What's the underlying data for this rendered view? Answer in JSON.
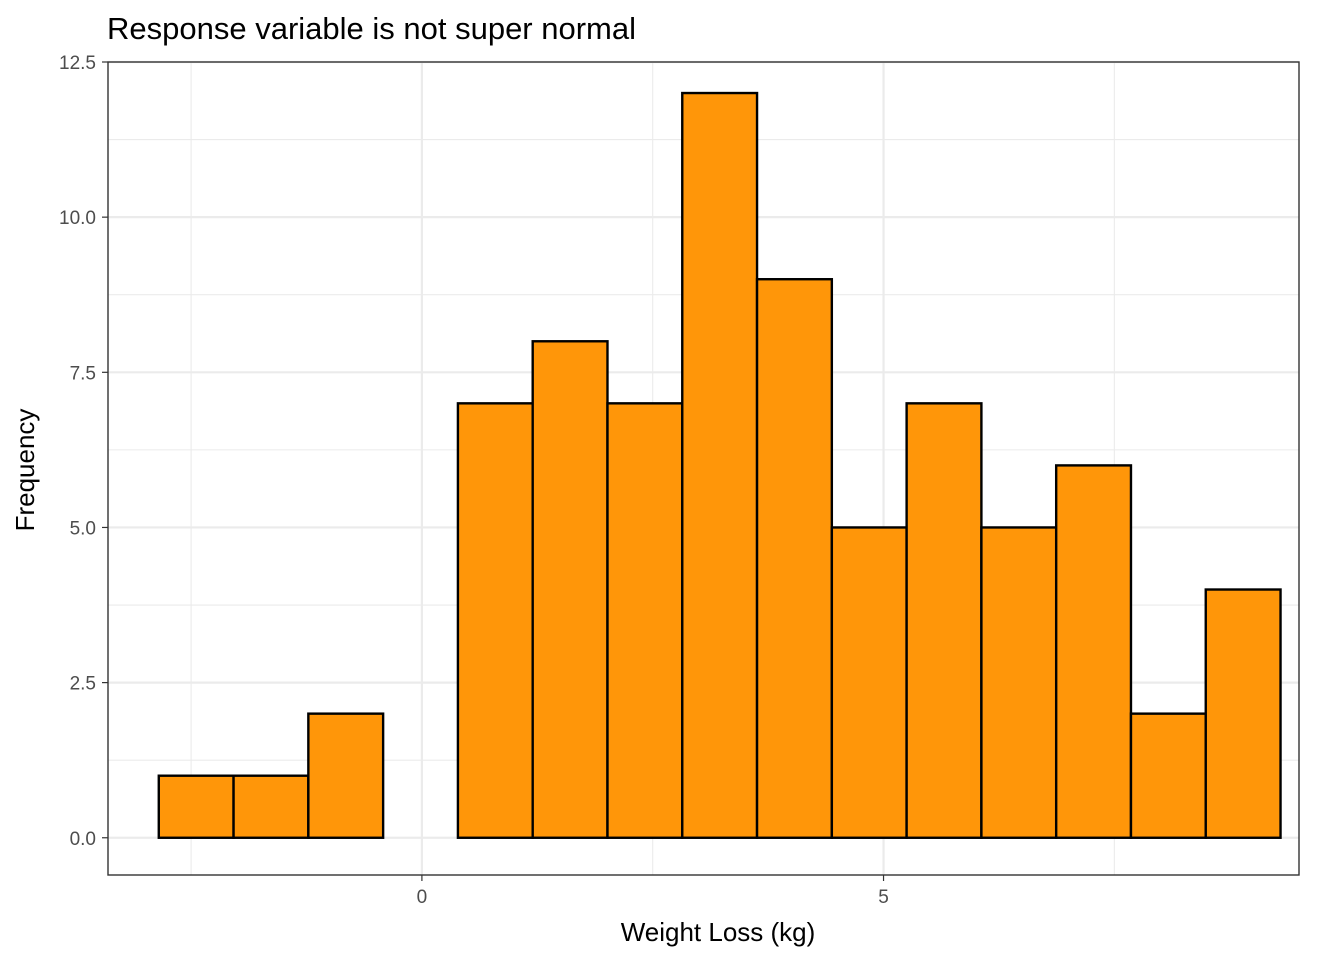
{
  "chart_data": {
    "type": "bar",
    "title": "Response variable is not super normal",
    "xlabel": "Weight Loss (kg)",
    "ylabel": "Frequency",
    "xlim": [
      -3.4,
      9.5
    ],
    "ylim": [
      -0.6,
      12.5
    ],
    "x_ticks": [
      {
        "value": 0,
        "label": "0"
      },
      {
        "value": 5,
        "label": "5"
      }
    ],
    "x_minor_ticks": [
      -2.5,
      2.5,
      7.5
    ],
    "y_ticks": [
      {
        "value": 0,
        "label": "0.0"
      },
      {
        "value": 2.5,
        "label": "2.5"
      },
      {
        "value": 5,
        "label": "5.0"
      },
      {
        "value": 7.5,
        "label": "7.5"
      },
      {
        "value": 10,
        "label": "10.0"
      },
      {
        "value": 12.5,
        "label": "12.5"
      }
    ],
    "y_minor_ticks": [
      1.25,
      3.75,
      6.25,
      8.75,
      11.25
    ],
    "bins": [
      {
        "x0": -2.85,
        "x1": -2.04,
        "count": 1
      },
      {
        "x0": -2.04,
        "x1": -1.23,
        "count": 1
      },
      {
        "x0": -1.23,
        "x1": -0.42,
        "count": 2
      },
      {
        "x0": -0.42,
        "x1": 0.39,
        "count": 0
      },
      {
        "x0": 0.39,
        "x1": 1.2,
        "count": 7
      },
      {
        "x0": 1.2,
        "x1": 2.01,
        "count": 8
      },
      {
        "x0": 2.01,
        "x1": 2.82,
        "count": 7
      },
      {
        "x0": 2.82,
        "x1": 3.63,
        "count": 12
      },
      {
        "x0": 3.63,
        "x1": 4.44,
        "count": 9
      },
      {
        "x0": 4.44,
        "x1": 5.25,
        "count": 5
      },
      {
        "x0": 5.25,
        "x1": 6.06,
        "count": 7
      },
      {
        "x0": 6.06,
        "x1": 6.87,
        "count": 5
      },
      {
        "x0": 6.87,
        "x1": 7.68,
        "count": 6
      },
      {
        "x0": 7.68,
        "x1": 8.49,
        "count": 2
      },
      {
        "x0": 8.49,
        "x1": 9.3,
        "count": 4
      }
    ],
    "bar_fill": "#ff9609",
    "bar_outline": "#000000",
    "grid": true,
    "legend": "none"
  }
}
